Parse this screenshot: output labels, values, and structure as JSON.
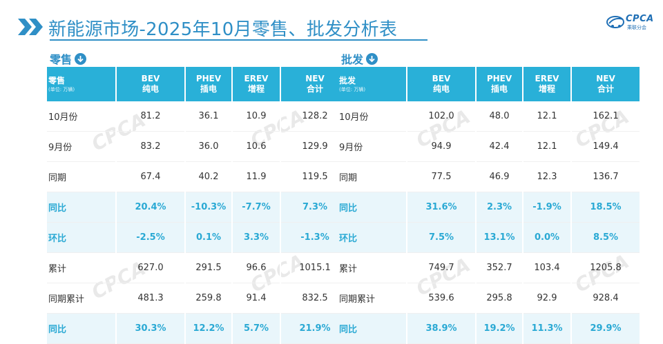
{
  "title": "新能源市场-2025年10月零售、批发分析表",
  "logo": {
    "brand": "CPCA",
    "sub": "乘联分会"
  },
  "watermark": "CPCA",
  "colors": {
    "accent": "#2f8fc6",
    "header_bg": "#29b0d8",
    "highlight_text": "#2aa9d4",
    "highlight_bg": "#e9f6fb"
  },
  "retail": {
    "section_label": "零售",
    "arrow_icon": "arrow-down-circle",
    "header": {
      "corner": "零售",
      "unit": "(单位: 万辆)",
      "columns": [
        {
          "code": "BEV",
          "name": "纯电"
        },
        {
          "code": "PHEV",
          "name": "插电"
        },
        {
          "code": "EREV",
          "name": "增程"
        },
        {
          "code": "NEV",
          "name": "合计"
        }
      ]
    },
    "rows": [
      {
        "label": "10月份",
        "values": [
          "81.2",
          "36.1",
          "10.9",
          "128.2"
        ],
        "highlight": false
      },
      {
        "label": "9月份",
        "values": [
          "83.2",
          "36.0",
          "10.6",
          "129.9"
        ],
        "highlight": false
      },
      {
        "label": "同期",
        "values": [
          "67.4",
          "40.2",
          "11.9",
          "119.5"
        ],
        "highlight": false
      },
      {
        "label": "同比",
        "values": [
          "20.4%",
          "-10.3%",
          "-7.7%",
          "7.3%"
        ],
        "highlight": true
      },
      {
        "label": "环比",
        "values": [
          "-2.5%",
          "0.1%",
          "3.3%",
          "-1.3%"
        ],
        "highlight": true
      },
      {
        "label": "累计",
        "values": [
          "627.0",
          "291.5",
          "96.6",
          "1015.1"
        ],
        "highlight": false
      },
      {
        "label": "同期累计",
        "values": [
          "481.3",
          "259.8",
          "91.4",
          "832.5"
        ],
        "highlight": false
      },
      {
        "label": "同比",
        "values": [
          "30.3%",
          "12.2%",
          "5.7%",
          "21.9%"
        ],
        "highlight": true
      }
    ]
  },
  "wholesale": {
    "section_label": "批发",
    "arrow_icon": "arrow-down-circle",
    "header": {
      "corner": "批发",
      "unit": "(单位: 万辆)",
      "columns": [
        {
          "code": "BEV",
          "name": "纯电"
        },
        {
          "code": "PHEV",
          "name": "插电"
        },
        {
          "code": "EREV",
          "name": "增程"
        },
        {
          "code": "NEV",
          "name": "合计"
        }
      ]
    },
    "rows": [
      {
        "label": "10月份",
        "values": [
          "102.0",
          "48.0",
          "12.1",
          "162.1"
        ],
        "highlight": false
      },
      {
        "label": "9月份",
        "values": [
          "94.9",
          "42.4",
          "12.1",
          "149.4"
        ],
        "highlight": false
      },
      {
        "label": "同期",
        "values": [
          "77.5",
          "46.9",
          "12.3",
          "136.7"
        ],
        "highlight": false
      },
      {
        "label": "同比",
        "values": [
          "31.6%",
          "2.3%",
          "-1.9%",
          "18.5%"
        ],
        "highlight": true
      },
      {
        "label": "环比",
        "values": [
          "7.5%",
          "13.1%",
          "0.0%",
          "8.5%"
        ],
        "highlight": true
      },
      {
        "label": "累计",
        "values": [
          "749.7",
          "352.7",
          "103.4",
          "1205.8"
        ],
        "highlight": false
      },
      {
        "label": "同期累计",
        "values": [
          "539.6",
          "295.8",
          "92.9",
          "928.4"
        ],
        "highlight": false
      },
      {
        "label": "同比",
        "values": [
          "38.9%",
          "19.2%",
          "11.3%",
          "29.9%"
        ],
        "highlight": true
      }
    ]
  }
}
